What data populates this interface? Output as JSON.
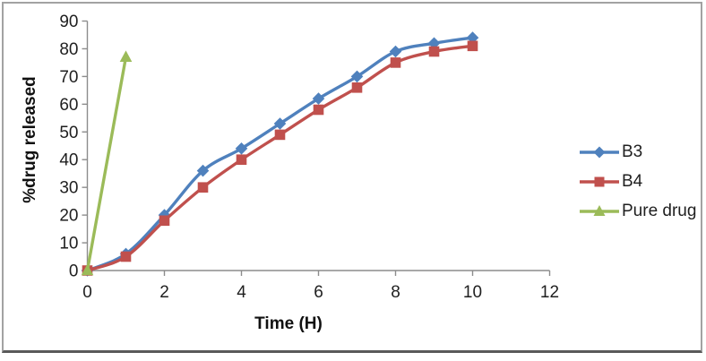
{
  "chart_data": {
    "type": "line",
    "title": "",
    "xlabel": "Time (H)",
    "ylabel": "%drug released",
    "xlim": [
      0,
      12
    ],
    "ylim": [
      0,
      90
    ],
    "x_ticks": [
      0,
      2,
      4,
      6,
      8,
      10,
      12
    ],
    "y_ticks": [
      0,
      10,
      20,
      30,
      40,
      50,
      60,
      70,
      80,
      90
    ],
    "grid": false,
    "legend_position": "right",
    "axis_color": "#8c8c8c",
    "text_color": "#1f1f1f",
    "series": [
      {
        "name": "B3",
        "color": "#4F81BD",
        "marker": "diamond",
        "x": [
          0,
          1,
          2,
          3,
          4,
          5,
          6,
          7,
          8,
          9,
          10
        ],
        "values": [
          0,
          6,
          20,
          36,
          44,
          53,
          62,
          70,
          79,
          82,
          84
        ]
      },
      {
        "name": "B4",
        "color": "#C0504D",
        "marker": "square",
        "x": [
          0,
          1,
          2,
          3,
          4,
          5,
          6,
          7,
          8,
          9,
          10
        ],
        "values": [
          0,
          5,
          18,
          30,
          40,
          49,
          58,
          66,
          75,
          79,
          81
        ]
      },
      {
        "name": "Pure drug",
        "color": "#9BBB59",
        "marker": "triangle",
        "x": [
          0,
          1
        ],
        "values": [
          0,
          77
        ]
      }
    ]
  }
}
